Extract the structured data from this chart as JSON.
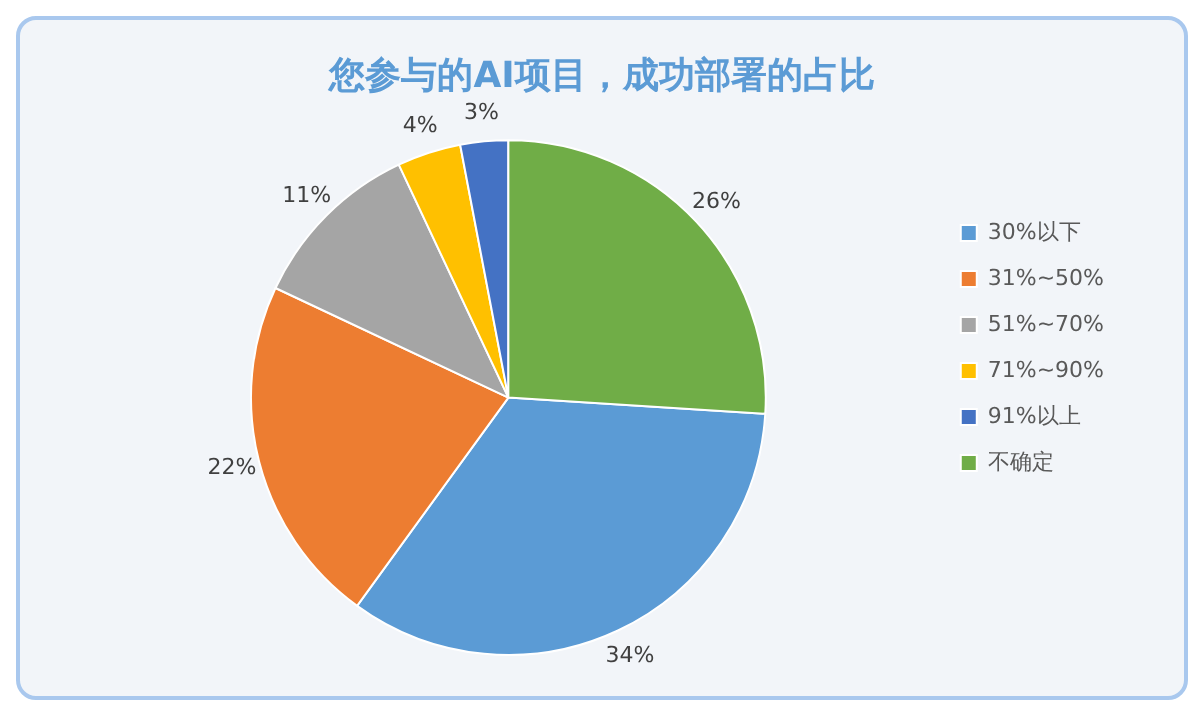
{
  "chart_data": {
    "type": "pie",
    "title": "您参与的AI项目，成功部署的占比",
    "categories": [
      "30%以下",
      "31%~50%",
      "51%~70%",
      "71%~90%",
      "91%以上",
      "不确定"
    ],
    "values": [
      34,
      22,
      11,
      4,
      3,
      26
    ],
    "value_labels": [
      "34%",
      "22%",
      "11%",
      "4%",
      "3%",
      "26%"
    ],
    "colors": [
      "#5b9bd5",
      "#ed7d31",
      "#a5a5a5",
      "#ffc000",
      "#4472c4",
      "#70ad47"
    ],
    "legend": "right"
  }
}
